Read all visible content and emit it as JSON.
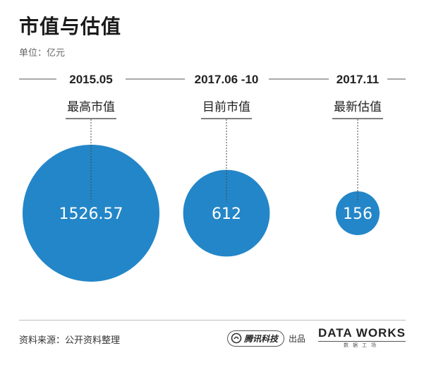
{
  "header": {
    "title": "市值与估值",
    "unit": "单位：亿元"
  },
  "chart_data": {
    "type": "bubble",
    "title": "市值与估值",
    "unit": "单位：亿元",
    "items": [
      {
        "period": "2015.05",
        "label": "最高市值",
        "value": 1526.57,
        "value_label": "1526.57"
      },
      {
        "period": "2017.06 -10",
        "label": "目前市值",
        "value": 612,
        "value_label": "612"
      },
      {
        "period": "2017.11",
        "label": "最新估值",
        "value": 156,
        "value_label": "156"
      }
    ],
    "colors": {
      "bubble": "#2386c8",
      "text": "#222222",
      "rule": "#555555"
    }
  },
  "footer": {
    "source": "资料来源：公开资料整理",
    "brand": "腾讯科技",
    "brand_suffix": "出品",
    "brand_icon": "tencent-logo-icon",
    "datagroup": "DATA WORKS",
    "datagroup_sub": "数据工场"
  }
}
